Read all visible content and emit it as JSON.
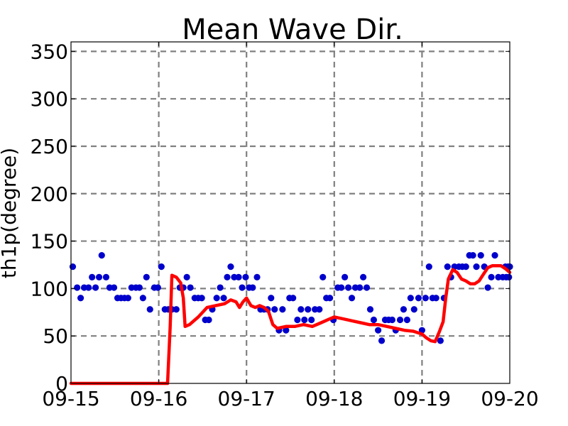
{
  "chart_data": {
    "type": "line",
    "title": "Mean Wave Dir.",
    "xlabel": "",
    "ylabel": "th1p(degree)",
    "x_tick_labels": [
      "09-15",
      "09-16",
      "09-17",
      "09-18",
      "09-19",
      "09-20"
    ],
    "y_ticks": [
      0,
      50,
      100,
      150,
      200,
      250,
      300,
      350
    ],
    "xlim": [
      0,
      5
    ],
    "ylim": [
      0,
      360
    ],
    "grid": true,
    "legend": "none",
    "series": [
      {
        "style": "scatter",
        "color": "#0000cc",
        "points": [
          [
            0.02,
            123
          ],
          [
            0.07,
            101
          ],
          [
            0.11,
            90
          ],
          [
            0.15,
            101
          ],
          [
            0.2,
            101
          ],
          [
            0.24,
            112
          ],
          [
            0.28,
            101
          ],
          [
            0.32,
            112
          ],
          [
            0.35,
            135
          ],
          [
            0.4,
            112
          ],
          [
            0.44,
            101
          ],
          [
            0.49,
            101
          ],
          [
            0.53,
            90
          ],
          [
            0.57,
            90
          ],
          [
            0.61,
            90
          ],
          [
            0.65,
            90
          ],
          [
            0.69,
            101
          ],
          [
            0.74,
            101
          ],
          [
            0.78,
            101
          ],
          [
            0.82,
            90
          ],
          [
            0.86,
            112
          ],
          [
            0.9,
            78
          ],
          [
            0.95,
            101
          ],
          [
            0.99,
            101
          ],
          [
            1.03,
            123
          ],
          [
            1.07,
            78
          ],
          [
            1.11,
            78
          ],
          [
            1.15,
            78
          ],
          [
            1.2,
            78
          ],
          [
            1.24,
            101
          ],
          [
            1.28,
            101
          ],
          [
            1.32,
            112
          ],
          [
            1.36,
            101
          ],
          [
            1.41,
            90
          ],
          [
            1.45,
            90
          ],
          [
            1.49,
            90
          ],
          [
            1.53,
            67
          ],
          [
            1.57,
            67
          ],
          [
            1.61,
            78
          ],
          [
            1.66,
            90
          ],
          [
            1.7,
            101
          ],
          [
            1.74,
            90
          ],
          [
            1.78,
            112
          ],
          [
            1.82,
            123
          ],
          [
            1.86,
            112
          ],
          [
            1.91,
            112
          ],
          [
            1.95,
            101
          ],
          [
            1.99,
            112
          ],
          [
            2.03,
            101
          ],
          [
            2.07,
            101
          ],
          [
            2.12,
            112
          ],
          [
            2.16,
            78
          ],
          [
            2.2,
            78
          ],
          [
            2.24,
            78
          ],
          [
            2.28,
            90
          ],
          [
            2.32,
            78
          ],
          [
            2.37,
            56
          ],
          [
            2.41,
            78
          ],
          [
            2.45,
            56
          ],
          [
            2.49,
            90
          ],
          [
            2.53,
            90
          ],
          [
            2.58,
            67
          ],
          [
            2.62,
            78
          ],
          [
            2.66,
            67
          ],
          [
            2.7,
            78
          ],
          [
            2.74,
            67
          ],
          [
            2.78,
            78
          ],
          [
            2.83,
            78
          ],
          [
            2.87,
            112
          ],
          [
            2.91,
            90
          ],
          [
            2.95,
            90
          ],
          [
            2.99,
            67
          ],
          [
            3.04,
            101
          ],
          [
            3.08,
            101
          ],
          [
            3.12,
            112
          ],
          [
            3.16,
            101
          ],
          [
            3.2,
            90
          ],
          [
            3.24,
            101
          ],
          [
            3.29,
            101
          ],
          [
            3.33,
            112
          ],
          [
            3.37,
            101
          ],
          [
            3.41,
            78
          ],
          [
            3.45,
            67
          ],
          [
            3.5,
            56
          ],
          [
            3.54,
            45
          ],
          [
            3.58,
            67
          ],
          [
            3.62,
            67
          ],
          [
            3.66,
            67
          ],
          [
            3.7,
            56
          ],
          [
            3.75,
            67
          ],
          [
            3.79,
            78
          ],
          [
            3.83,
            67
          ],
          [
            3.87,
            90
          ],
          [
            3.91,
            78
          ],
          [
            3.96,
            90
          ],
          [
            4,
            56
          ],
          [
            4.04,
            90
          ],
          [
            4.08,
            123
          ],
          [
            4.12,
            90
          ],
          [
            4.16,
            90
          ],
          [
            4.21,
            45
          ],
          [
            4.25,
            90
          ],
          [
            4.29,
            123
          ],
          [
            4.33,
            112
          ],
          [
            4.37,
            123
          ],
          [
            4.42,
            123
          ],
          [
            4.46,
            123
          ],
          [
            4.5,
            123
          ],
          [
            4.54,
            135
          ],
          [
            4.58,
            135
          ],
          [
            4.62,
            123
          ],
          [
            4.67,
            135
          ],
          [
            4.71,
            123
          ],
          [
            4.75,
            101
          ],
          [
            4.79,
            112
          ],
          [
            4.83,
            135
          ],
          [
            4.87,
            112
          ],
          [
            4.92,
            112
          ],
          [
            4.96,
            112
          ],
          [
            5,
            123
          ],
          [
            4.98,
            123
          ],
          [
            4.95,
            123
          ],
          [
            4.99,
            112
          ]
        ]
      },
      {
        "style": "line",
        "color": "#ff0000",
        "points": [
          [
            0,
            0
          ],
          [
            0.5,
            0
          ],
          [
            1,
            0
          ],
          [
            1.1,
            0
          ],
          [
            1.13,
            60
          ],
          [
            1.15,
            114
          ],
          [
            1.2,
            112
          ],
          [
            1.25,
            106
          ],
          [
            1.28,
            90
          ],
          [
            1.3,
            60
          ],
          [
            1.35,
            62
          ],
          [
            1.45,
            70
          ],
          [
            1.55,
            80
          ],
          [
            1.65,
            82
          ],
          [
            1.75,
            84
          ],
          [
            1.82,
            88
          ],
          [
            1.88,
            86
          ],
          [
            1.92,
            80
          ],
          [
            1.96,
            86
          ],
          [
            2,
            90
          ],
          [
            2.05,
            82
          ],
          [
            2.1,
            80
          ],
          [
            2.15,
            82
          ],
          [
            2.2,
            80
          ],
          [
            2.25,
            76
          ],
          [
            2.3,
            62
          ],
          [
            2.35,
            58
          ],
          [
            2.45,
            60
          ],
          [
            2.55,
            60
          ],
          [
            2.65,
            62
          ],
          [
            2.75,
            60
          ],
          [
            2.85,
            64
          ],
          [
            2.95,
            68
          ],
          [
            3,
            70
          ],
          [
            3.1,
            68
          ],
          [
            3.2,
            66
          ],
          [
            3.3,
            64
          ],
          [
            3.4,
            62
          ],
          [
            3.5,
            62
          ],
          [
            3.6,
            60
          ],
          [
            3.7,
            58
          ],
          [
            3.8,
            56
          ],
          [
            3.9,
            55
          ],
          [
            4,
            52
          ],
          [
            4.05,
            48
          ],
          [
            4.1,
            45
          ],
          [
            4.15,
            44
          ],
          [
            4.2,
            55
          ],
          [
            4.24,
            65
          ],
          [
            4.27,
            90
          ],
          [
            4.3,
            110
          ],
          [
            4.35,
            120
          ],
          [
            4.4,
            117
          ],
          [
            4.45,
            110
          ],
          [
            4.5,
            108
          ],
          [
            4.55,
            105
          ],
          [
            4.6,
            105
          ],
          [
            4.65,
            108
          ],
          [
            4.7,
            115
          ],
          [
            4.75,
            122
          ],
          [
            4.8,
            124
          ],
          [
            4.85,
            124
          ],
          [
            4.9,
            124
          ],
          [
            4.95,
            121
          ],
          [
            5,
            117
          ]
        ]
      }
    ]
  }
}
